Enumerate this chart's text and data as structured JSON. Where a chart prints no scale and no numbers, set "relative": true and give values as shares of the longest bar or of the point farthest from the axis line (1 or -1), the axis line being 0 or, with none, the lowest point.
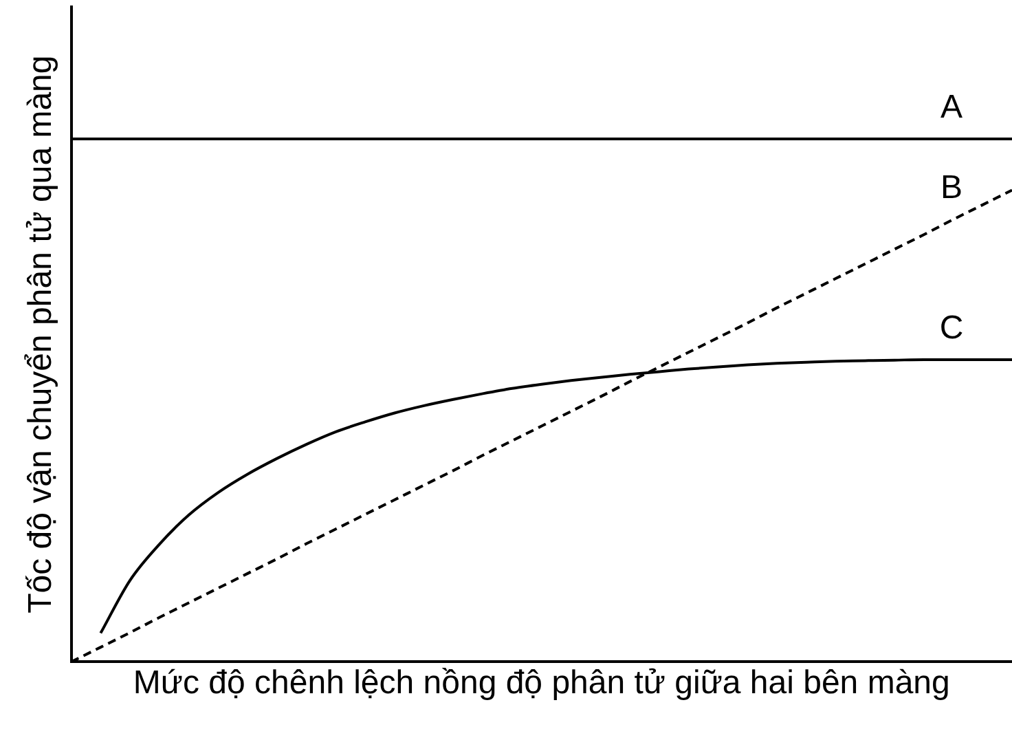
{
  "chart_data": {
    "type": "line",
    "relative": true,
    "tick_labels": false,
    "xlabel": "Mức độ chênh lệch nồng độ phân tử giữa hai bên màng",
    "ylabel": "Tốc độ vận chuyển phân tử qua màng",
    "categories": [
      null,
      null,
      null,
      null,
      null,
      null,
      null,
      null,
      null,
      null,
      null,
      null,
      null,
      null,
      null,
      null,
      null,
      null,
      null,
      null,
      null,
      null,
      null,
      null,
      null,
      null,
      null,
      null,
      null,
      null,
      null,
      null,
      null
    ],
    "series": [
      {
        "name": "A",
        "color": "#000000",
        "values": [
          1,
          1,
          1,
          1,
          1,
          1,
          1,
          1,
          1,
          1,
          1,
          1,
          1,
          1,
          1,
          1,
          1,
          1,
          1,
          1,
          1,
          1,
          1,
          1,
          1,
          1,
          1,
          1,
          1,
          1,
          1,
          1,
          1
        ]
      },
      {
        "name": "B",
        "color": "#000000",
        "line_style": "dashed",
        "values": [
          0,
          0.028,
          0.056,
          0.085,
          0.113,
          0.141,
          0.169,
          0.197,
          0.226,
          0.254,
          0.282,
          0.31,
          0.338,
          0.366,
          0.395,
          0.423,
          0.451,
          0.479,
          0.507,
          0.536,
          0.564,
          0.592,
          0.62,
          0.648,
          0.677,
          0.705,
          0.733,
          0.761,
          0.789,
          0.817,
          0.846,
          0.874,
          0.902
        ]
      },
      {
        "name": "C",
        "color": "#000000",
        "values": [
          null,
          0.055,
          0.156,
          0.225,
          0.281,
          0.324,
          0.359,
          0.389,
          0.416,
          0.44,
          0.459,
          0.476,
          0.49,
          0.502,
          0.513,
          0.523,
          0.531,
          0.538,
          0.544,
          0.55,
          0.555,
          0.56,
          0.564,
          0.568,
          0.571,
          0.573,
          0.575,
          0.576,
          0.577,
          0.578,
          0.578,
          0.578,
          0.578
        ]
      }
    ]
  }
}
